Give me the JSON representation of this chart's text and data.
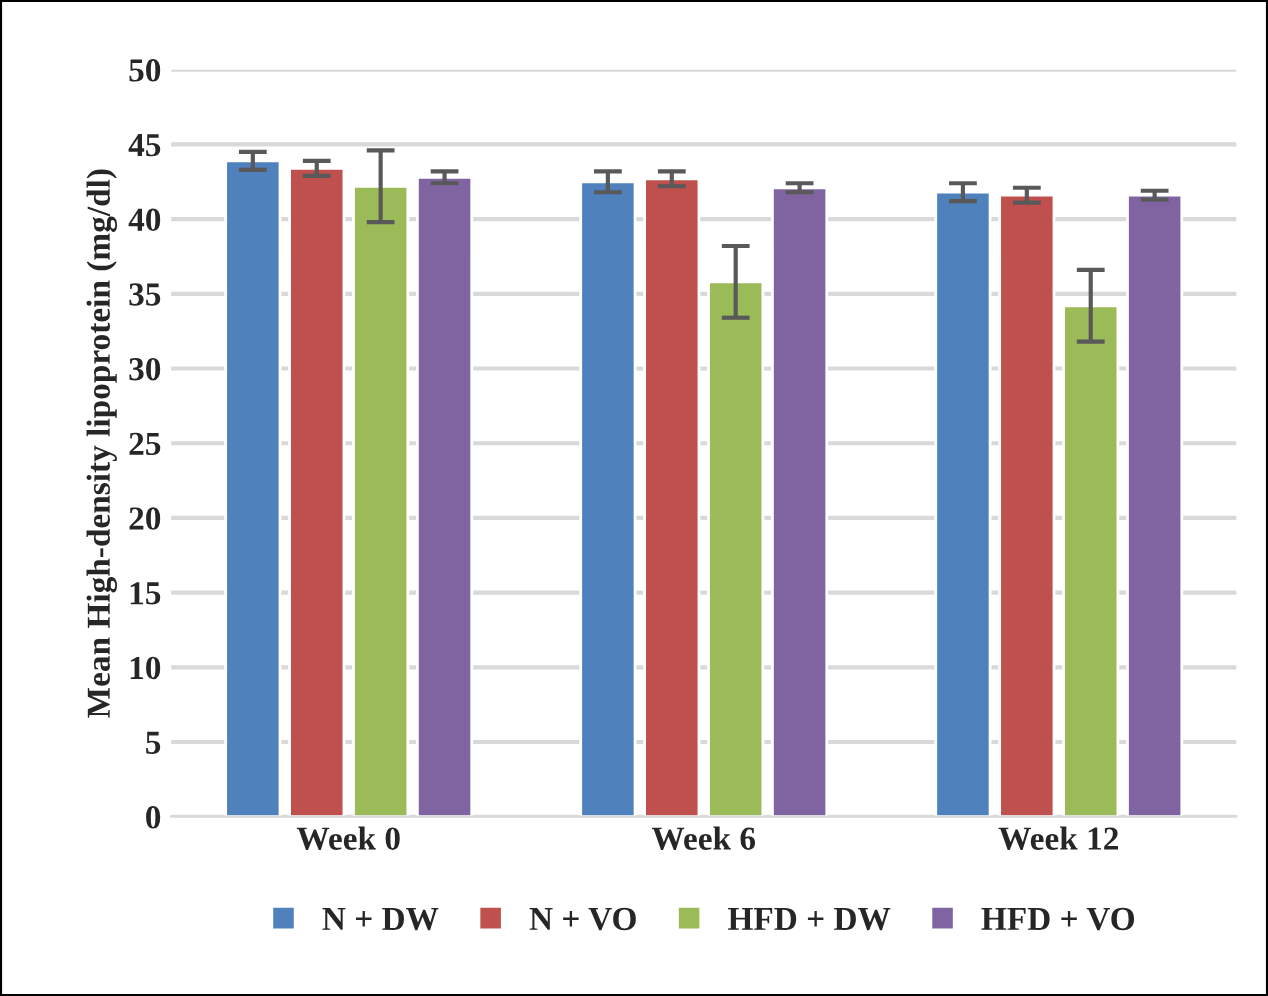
{
  "chart_data": {
    "type": "bar",
    "ylabel": "Mean High-density lipoprotein (mg/dl)",
    "categories": [
      "Week 0",
      "Week 6",
      "Week 12"
    ],
    "series": [
      {
        "name": "N + DW",
        "color": "#4f81bd",
        "values": [
          43.9,
          42.5,
          41.8
        ],
        "errors": [
          0.6,
          0.7,
          0.6
        ]
      },
      {
        "name": "N + VO",
        "color": "#c0504d",
        "values": [
          43.4,
          42.7,
          41.6
        ],
        "errors": [
          0.5,
          0.5,
          0.5
        ]
      },
      {
        "name": "HFD + DW",
        "color": "#9bbb59",
        "values": [
          42.2,
          35.8,
          34.2
        ],
        "errors": [
          2.4,
          2.4,
          2.4
        ]
      },
      {
        "name": "HFD + VO",
        "color": "#8064a2",
        "values": [
          42.8,
          42.1,
          41.6
        ],
        "errors": [
          0.4,
          0.3,
          0.3
        ]
      }
    ],
    "ylim": [
      0,
      50
    ],
    "yticks": [
      0,
      5,
      10,
      15,
      20,
      25,
      30,
      35,
      40,
      45,
      50
    ],
    "grid": "y",
    "legend": "bottom"
  }
}
